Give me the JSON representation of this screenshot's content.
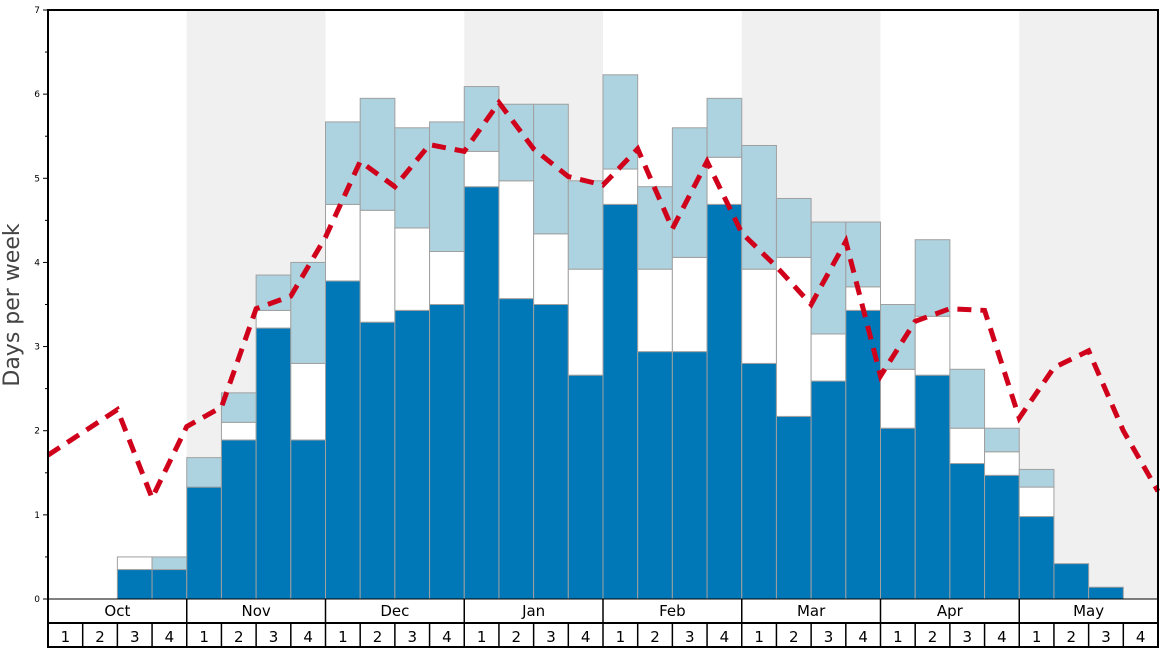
{
  "chart_data": {
    "type": "bar",
    "stacked": true,
    "title": "",
    "xlabel": "",
    "ylabel": "Days per week",
    "ylim": [
      0,
      7
    ],
    "yticks": [
      "0",
      "1",
      "2",
      "3",
      "4",
      "5",
      "6",
      "7"
    ],
    "months": [
      "Oct",
      "Nov",
      "Dec",
      "Jan",
      "Feb",
      "Mar",
      "Apr",
      "May"
    ],
    "week_labels": [
      "1",
      "2",
      "3",
      "4"
    ],
    "series": [
      {
        "name": "dark",
        "color": "#0077b6",
        "values": [
          0,
          0,
          0.35,
          0.35,
          1.33,
          1.89,
          3.22,
          1.89,
          3.78,
          3.29,
          3.43,
          3.5,
          4.9,
          3.57,
          3.5,
          2.66,
          4.69,
          2.94,
          2.94,
          4.69,
          2.8,
          2.17,
          2.59,
          3.43,
          2.03,
          2.66,
          1.61,
          1.47,
          0.98,
          0.42,
          0.14,
          0
        ]
      },
      {
        "name": "white",
        "color": "#ffffff",
        "values": [
          0,
          0,
          0.15,
          0,
          0,
          0.21,
          0.21,
          0.91,
          0.91,
          1.33,
          0.98,
          0.63,
          0.42,
          1.4,
          0.84,
          1.26,
          0.42,
          0.98,
          1.12,
          0.56,
          1.12,
          1.89,
          0.56,
          0.28,
          0.7,
          0.7,
          0.42,
          0.28,
          0.35,
          0,
          0,
          0
        ]
      },
      {
        "name": "light",
        "color": "#aed3e0",
        "values": [
          0,
          0,
          0,
          0.15,
          0.35,
          0.35,
          0.42,
          1.2,
          0.98,
          1.33,
          1.19,
          1.54,
          0.77,
          0.91,
          1.54,
          1.05,
          1.12,
          0.98,
          1.54,
          0.7,
          1.47,
          0.7,
          1.33,
          0.77,
          0.77,
          0.91,
          0.7,
          0.28,
          0.21,
          0,
          0,
          0
        ]
      }
    ],
    "line": {
      "name": "average",
      "style": "dashed",
      "color": "#d0021b",
      "values": [
        1.71,
        1.98,
        2.25,
        1.2,
        2.05,
        2.28,
        3.45,
        3.6,
        4.3,
        5.2,
        4.9,
        5.4,
        5.32,
        5.9,
        5.35,
        5.02,
        4.92,
        5.35,
        4.4,
        5.2,
        4.35,
        3.95,
        3.5,
        4.25,
        2.65,
        3.3,
        3.45,
        3.43,
        2.15,
        2.75,
        2.95,
        2.0,
        1.28
      ]
    },
    "shade_color": "#f0f0f0",
    "grid": false,
    "legend": "none"
  }
}
